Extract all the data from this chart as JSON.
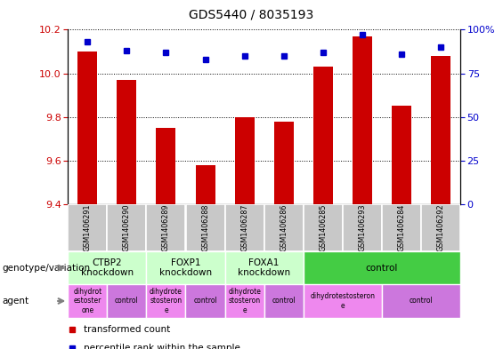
{
  "title": "GDS5440 / 8035193",
  "samples": [
    "GSM1406291",
    "GSM1406290",
    "GSM1406289",
    "GSM1406288",
    "GSM1406287",
    "GSM1406286",
    "GSM1406285",
    "GSM1406293",
    "GSM1406284",
    "GSM1406292"
  ],
  "transformed_counts": [
    10.1,
    9.97,
    9.75,
    9.58,
    9.8,
    9.78,
    10.03,
    10.17,
    9.85,
    10.08
  ],
  "percentile_ranks": [
    93,
    88,
    87,
    83,
    85,
    85,
    87,
    97,
    86,
    90
  ],
  "ylim_left": [
    9.4,
    10.2
  ],
  "ylim_right": [
    0,
    100
  ],
  "yticks_left": [
    9.4,
    9.6,
    9.8,
    10.0,
    10.2
  ],
  "yticks_right": [
    0,
    25,
    50,
    75,
    100
  ],
  "bar_color": "#cc0000",
  "dot_color": "#0000cc",
  "genotype_groups": [
    {
      "label": "CTBP2\nknockdown",
      "start": 0,
      "end": 2,
      "color": "#ccffcc"
    },
    {
      "label": "FOXP1\nknockdown",
      "start": 2,
      "end": 4,
      "color": "#ccffcc"
    },
    {
      "label": "FOXA1\nknockdown",
      "start": 4,
      "end": 6,
      "color": "#ccffcc"
    },
    {
      "label": "control",
      "start": 6,
      "end": 10,
      "color": "#44cc44"
    }
  ],
  "agent_groups": [
    {
      "label": "dihydrot\nestoster\none",
      "start": 0,
      "end": 1,
      "color": "#ee88ee"
    },
    {
      "label": "control",
      "start": 1,
      "end": 2,
      "color": "#cc77dd"
    },
    {
      "label": "dihydrote\nstosteron\ne",
      "start": 2,
      "end": 3,
      "color": "#ee88ee"
    },
    {
      "label": "control",
      "start": 3,
      "end": 4,
      "color": "#cc77dd"
    },
    {
      "label": "dihydrote\nstosteron\ne",
      "start": 4,
      "end": 5,
      "color": "#ee88ee"
    },
    {
      "label": "control",
      "start": 5,
      "end": 6,
      "color": "#cc77dd"
    },
    {
      "label": "dihydrotestosteron\ne",
      "start": 6,
      "end": 8,
      "color": "#ee88ee"
    },
    {
      "label": "control",
      "start": 8,
      "end": 10,
      "color": "#cc77dd"
    }
  ],
  "legend_red_label": "transformed count",
  "legend_blue_label": "percentile rank within the sample",
  "genotype_label": "genotype/variation",
  "agent_label": "agent",
  "left_axis_color": "#cc0000",
  "right_axis_color": "#0000cc",
  "sample_bg": "#c8c8c8",
  "sample_edge": "#ffffff"
}
